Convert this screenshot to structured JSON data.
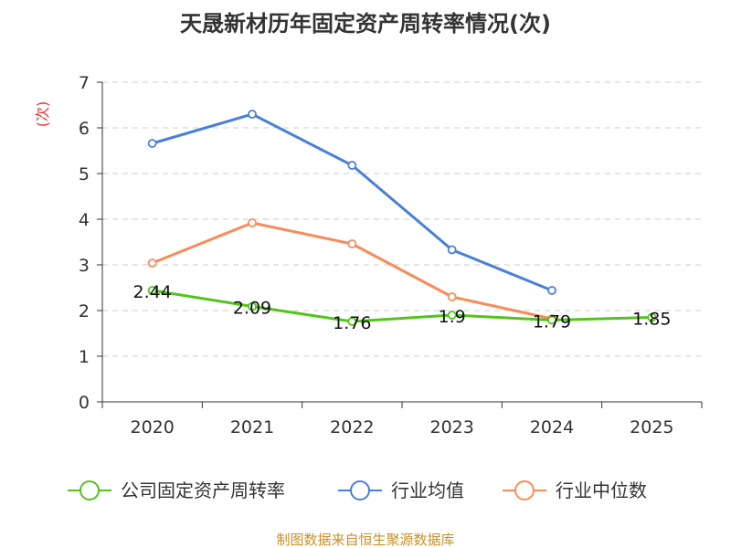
{
  "chart_data": {
    "type": "line",
    "title": "天晟新材历年固定资产周转率情况(次)",
    "ylabel": "(次)",
    "xlabel": "",
    "categories": [
      "2020",
      "2021",
      "2022",
      "2023",
      "2024",
      "2025"
    ],
    "yticks": [
      "0",
      "1",
      "2",
      "3",
      "4",
      "5",
      "6",
      "7"
    ],
    "ylim": [
      0,
      7
    ],
    "grid": true,
    "legend_position": "bottom",
    "series": [
      {
        "name": "公司固定资产周转率",
        "color": "#52c41a",
        "values": [
          2.44,
          2.09,
          1.76,
          1.9,
          1.79,
          1.85
        ],
        "labels": [
          "2.44",
          "2.09",
          "1.76",
          "1.9",
          "1.79",
          "1.85"
        ]
      },
      {
        "name": "行业均值",
        "color": "#4a7fd8",
        "values": [
          5.66,
          6.3,
          5.18,
          3.33,
          2.44,
          null
        ]
      },
      {
        "name": "行业中位数",
        "color": "#f78c5a",
        "values": [
          3.04,
          3.92,
          3.46,
          2.3,
          1.82,
          null
        ]
      }
    ],
    "source": "制图数据来自恒生聚源数据库"
  }
}
